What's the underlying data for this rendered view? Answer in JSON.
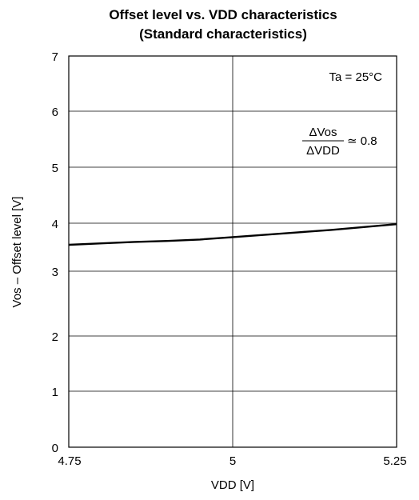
{
  "chart_data": {
    "type": "line",
    "title": "Offset level vs. VDD characteristics",
    "subtitle": "(Standard characteristics)",
    "xlabel": "VDD [V]",
    "ylabel": "Vos – Offset level [V]",
    "xlim": [
      4.75,
      5.25
    ],
    "ylim": [
      0,
      7
    ],
    "grid": true,
    "x_ticks": [
      "4.75",
      "5",
      "5.25"
    ],
    "y_ticks": [
      "0",
      "1",
      "2",
      "3",
      "4",
      "5",
      "6",
      "7"
    ],
    "series": [
      {
        "x": [
          4.75,
          4.8,
          4.85,
          4.9,
          4.95,
          5.0,
          5.05,
          5.1,
          5.15,
          5.2,
          5.25
        ],
        "y": [
          3.55,
          3.58,
          3.61,
          3.63,
          3.66,
          3.71,
          3.76,
          3.81,
          3.86,
          3.92,
          3.98
        ]
      }
    ],
    "annotations": {
      "temperature": "Ta = 25°C",
      "ratio_numerator": "ΔVos",
      "ratio_denominator": "ΔVDD",
      "ratio_value": "≃ 0.8"
    }
  }
}
